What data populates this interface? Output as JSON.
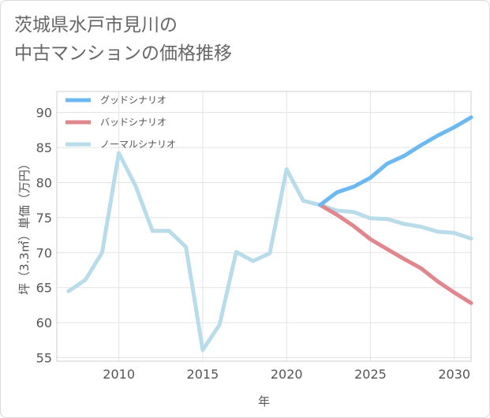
{
  "title_lines": [
    "茨城県水戸市見川の",
    "中古マンションの価格推移"
  ],
  "chart_data": {
    "type": "line",
    "xlabel": "年",
    "ylabel": "坪（3.3㎡）単価（万円）",
    "xlim": [
      2006.3,
      2031
    ],
    "ylim": [
      54.5,
      93
    ],
    "x_ticks": [
      2010,
      2015,
      2020,
      2025,
      2030
    ],
    "y_ticks": [
      55,
      60,
      65,
      70,
      75,
      80,
      85,
      90
    ],
    "grid": true,
    "legend_position": "top-left",
    "series": [
      {
        "name": "グッドシナリオ",
        "color": "#6cb8f0",
        "x": [
          2022,
          2023,
          2024,
          2025,
          2026,
          2027,
          2028,
          2029,
          2030,
          2031
        ],
        "y": [
          76.8,
          78.6,
          79.4,
          80.7,
          82.7,
          83.8,
          85.3,
          86.7,
          87.9,
          89.3
        ]
      },
      {
        "name": "バッドシナリオ",
        "color": "#e0868c",
        "x": [
          2022,
          2023,
          2024,
          2025,
          2026,
          2027,
          2028,
          2029,
          2030,
          2031
        ],
        "y": [
          76.8,
          75.4,
          73.8,
          71.9,
          70.5,
          69.1,
          67.8,
          65.9,
          64.3,
          62.8
        ]
      },
      {
        "name": "ノーマルシナリオ",
        "color": "#b8dcea",
        "x": [
          2007,
          2008,
          2009,
          2010,
          2011,
          2012,
          2013,
          2014,
          2015,
          2016,
          2017,
          2018,
          2019,
          2020,
          2021,
          2022,
          2023,
          2024,
          2025,
          2026,
          2027,
          2028,
          2029,
          2030,
          2031
        ],
        "y": [
          64.5,
          66.1,
          70.0,
          84.2,
          79.5,
          73.1,
          73.1,
          70.8,
          56.1,
          59.7,
          70.1,
          68.8,
          69.9,
          81.9,
          77.4,
          76.8,
          76.0,
          75.8,
          74.9,
          74.8,
          74.1,
          73.7,
          73.0,
          72.8,
          72.0
        ]
      }
    ]
  }
}
